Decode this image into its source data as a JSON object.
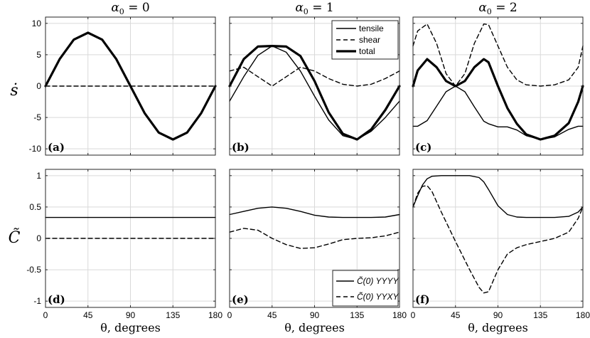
{
  "figure": {
    "ylabel_top": "ṡ",
    "ylabel_bottom": "C̃"
  },
  "chart_data": [
    {
      "type": "line",
      "id": "a",
      "row": 0,
      "col": 0,
      "title": "α0 = 0",
      "panel_label": "(a)",
      "xlabel": "",
      "ylabel": "ṡ",
      "xlim": [
        0,
        180
      ],
      "ylim": [
        -11,
        11
      ],
      "xticks": [
        0,
        45,
        90,
        135,
        180
      ],
      "yticks": [
        -10,
        -5,
        0,
        5,
        10
      ],
      "x": [
        0,
        15,
        30,
        45,
        60,
        75,
        90,
        105,
        120,
        135,
        150,
        165,
        180
      ],
      "series": [
        {
          "name": "total",
          "style": "thick",
          "values": [
            0,
            4.3,
            7.4,
            8.5,
            7.4,
            4.3,
            0,
            -4.3,
            -7.4,
            -8.5,
            -7.4,
            -4.3,
            0
          ]
        },
        {
          "name": "shear",
          "style": "dashed",
          "values": [
            0,
            0,
            0,
            0,
            0,
            0,
            0,
            0,
            0,
            0,
            0,
            0,
            0
          ]
        }
      ]
    },
    {
      "type": "line",
      "id": "b",
      "row": 0,
      "col": 1,
      "title": "α0 = 1",
      "panel_label": "(b)",
      "xlabel": "",
      "ylabel": "",
      "xlim": [
        0,
        180
      ],
      "ylim": [
        -11,
        11
      ],
      "xticks": [
        0,
        45,
        90,
        135,
        180
      ],
      "yticks": [
        -10,
        -5,
        0,
        5,
        10
      ],
      "legend": {
        "position": "top-right",
        "entries": [
          "tensile",
          "shear",
          "total"
        ]
      },
      "x": [
        0,
        15,
        30,
        45,
        60,
        75,
        90,
        105,
        120,
        135,
        150,
        165,
        180
      ],
      "series": [
        {
          "name": "tensile",
          "style": "solid",
          "values": [
            -2.4,
            1.5,
            4.9,
            6.4,
            5.4,
            2.4,
            -1.6,
            -5.4,
            -7.9,
            -8.5,
            -7.2,
            -5.0,
            -2.4
          ]
        },
        {
          "name": "shear",
          "style": "dashed",
          "values": [
            2.4,
            3.0,
            1.5,
            0,
            1.5,
            3.0,
            2.4,
            1.2,
            0.3,
            0,
            0.3,
            1.2,
            2.4
          ]
        },
        {
          "name": "total",
          "style": "thick",
          "values": [
            0,
            4.3,
            6.3,
            6.4,
            6.3,
            4.8,
            0.8,
            -4.2,
            -7.6,
            -8.5,
            -6.9,
            -3.8,
            0
          ]
        }
      ]
    },
    {
      "type": "line",
      "id": "c",
      "row": 0,
      "col": 2,
      "title": "α0 = 2",
      "panel_label": "(c)",
      "xlabel": "",
      "ylabel": "",
      "xlim": [
        0,
        180
      ],
      "ylim": [
        -11,
        11
      ],
      "xticks": [
        0,
        45,
        90,
        135,
        180
      ],
      "yticks": [
        -10,
        -5,
        0,
        5,
        10
      ],
      "x": [
        0,
        5,
        15,
        25,
        35,
        45,
        55,
        65,
        75,
        80,
        90,
        100,
        110,
        120,
        135,
        150,
        165,
        175,
        180
      ],
      "series": [
        {
          "name": "tensile",
          "style": "solid",
          "values": [
            -6.4,
            -6.4,
            -5.5,
            -3.2,
            -0.9,
            0,
            -0.9,
            -3.3,
            -5.6,
            -6.0,
            -6.5,
            -6.5,
            -7.0,
            -7.9,
            -8.5,
            -8.1,
            -6.9,
            -6.4,
            -6.4
          ]
        },
        {
          "name": "shear",
          "style": "dashed",
          "values": [
            6.4,
            8.8,
            9.9,
            6.8,
            2.0,
            0,
            2.0,
            6.8,
            9.9,
            9.8,
            6.4,
            3.0,
            1.0,
            0.2,
            0,
            0.2,
            1.0,
            3.0,
            6.4
          ]
        },
        {
          "name": "total",
          "style": "thick",
          "values": [
            0,
            2.5,
            4.3,
            3.0,
            0.8,
            0,
            0.8,
            3.0,
            4.3,
            3.8,
            0,
            -3.5,
            -6.0,
            -7.7,
            -8.5,
            -7.9,
            -5.9,
            -2.5,
            0
          ]
        }
      ]
    },
    {
      "type": "line",
      "id": "d",
      "row": 1,
      "col": 0,
      "title": "",
      "panel_label": "(d)",
      "xlabel": "θ, degrees",
      "ylabel": "C̃",
      "xlim": [
        0,
        180
      ],
      "ylim": [
        -1.1,
        1.1
      ],
      "xticks": [
        0,
        45,
        90,
        135,
        180
      ],
      "yticks": [
        -1,
        -0.5,
        0,
        0.5,
        1
      ],
      "x": [
        0,
        45,
        90,
        135,
        180
      ],
      "series": [
        {
          "name": "C_YYYY",
          "style": "solid",
          "values": [
            0.333,
            0.333,
            0.333,
            0.333,
            0.333
          ]
        },
        {
          "name": "C_YYXY",
          "style": "dashed",
          "values": [
            0,
            0,
            0,
            0,
            0
          ]
        }
      ]
    },
    {
      "type": "line",
      "id": "e",
      "row": 1,
      "col": 1,
      "title": "",
      "panel_label": "(e)",
      "xlabel": "θ, degrees",
      "ylabel": "",
      "xlim": [
        0,
        180
      ],
      "ylim": [
        -1.1,
        1.1
      ],
      "xticks": [
        0,
        45,
        90,
        135,
        180
      ],
      "yticks": [
        -1,
        -0.5,
        0,
        0.5,
        1
      ],
      "legend": {
        "position": "bottom-right",
        "entries": [
          "C̃(0) YYYY",
          "C̃(0) YYXY"
        ]
      },
      "x": [
        0,
        15,
        30,
        45,
        60,
        75,
        90,
        105,
        120,
        135,
        150,
        165,
        180
      ],
      "series": [
        {
          "name": "C_YYYY",
          "style": "solid",
          "values": [
            0.38,
            0.43,
            0.48,
            0.5,
            0.48,
            0.43,
            0.37,
            0.34,
            0.333,
            0.333,
            0.333,
            0.34,
            0.38
          ]
        },
        {
          "name": "C_YYXY",
          "style": "dashed",
          "values": [
            0.1,
            0.16,
            0.13,
            0,
            -0.1,
            -0.16,
            -0.15,
            -0.09,
            -0.02,
            0,
            0.01,
            0.04,
            0.1
          ]
        }
      ]
    },
    {
      "type": "line",
      "id": "f",
      "row": 1,
      "col": 2,
      "title": "",
      "panel_label": "(f)",
      "xlabel": "θ, degrees",
      "ylabel": "",
      "xlim": [
        0,
        180
      ],
      "ylim": [
        -1.1,
        1.1
      ],
      "xticks": [
        0,
        45,
        90,
        135,
        180
      ],
      "yticks": [
        -1,
        -0.5,
        0,
        0.5,
        1
      ],
      "x": [
        0,
        5,
        10,
        15,
        20,
        30,
        45,
        60,
        70,
        75,
        80,
        90,
        100,
        110,
        120,
        135,
        150,
        165,
        175,
        180
      ],
      "series": [
        {
          "name": "C_YYYY",
          "style": "solid",
          "values": [
            0.5,
            0.68,
            0.85,
            0.95,
            0.99,
            1.0,
            1.0,
            1.0,
            0.97,
            0.9,
            0.78,
            0.52,
            0.38,
            0.34,
            0.333,
            0.333,
            0.333,
            0.35,
            0.42,
            0.5
          ]
        },
        {
          "name": "C_YYXY",
          "style": "dashed",
          "values": [
            0.5,
            0.72,
            0.83,
            0.84,
            0.75,
            0.42,
            -0.05,
            -0.5,
            -0.78,
            -0.87,
            -0.85,
            -0.5,
            -0.25,
            -0.15,
            -0.1,
            -0.05,
            0,
            0.1,
            0.32,
            0.5
          ]
        }
      ]
    }
  ]
}
